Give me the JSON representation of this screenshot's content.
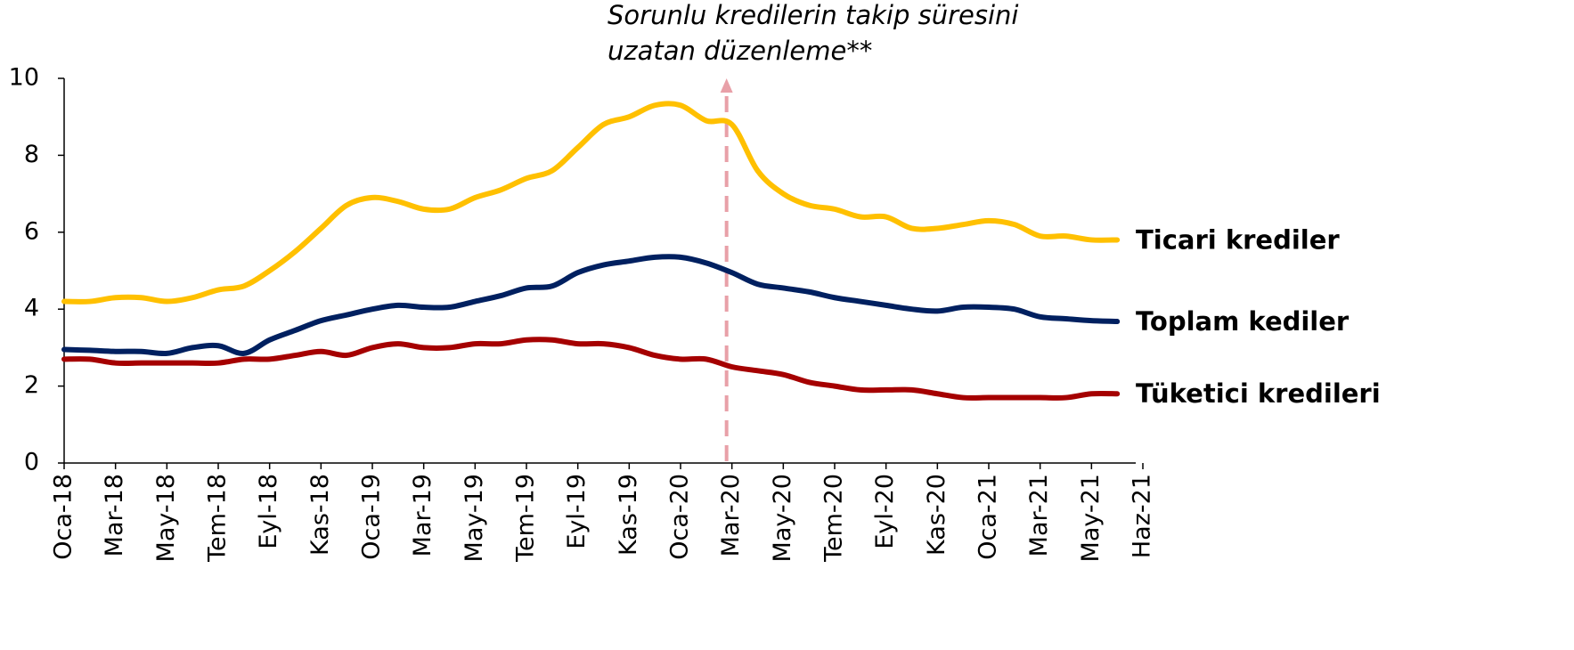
{
  "chart_data": {
    "type": "line",
    "categories": [
      "Oca-18",
      null,
      "Mar-18",
      null,
      "May-18",
      null,
      "Tem-18",
      null,
      "Eyl-18",
      null,
      "Kas-18",
      null,
      "Oca-19",
      null,
      "Mar-19",
      null,
      "May-19",
      null,
      "Tem-19",
      null,
      "Eyl-19",
      null,
      "Kas-19",
      null,
      "Oca-20",
      null,
      "Mar-20",
      null,
      "May-20",
      null,
      "Tem-20",
      null,
      "Eyl-20",
      null,
      "Kas-20",
      null,
      "Oca-21",
      null,
      "Mar-21",
      null,
      "May-21",
      null,
      "Haz-21"
    ],
    "series": [
      {
        "name": "Ticari krediler",
        "color": "#ffc000",
        "values": [
          4.2,
          4.2,
          4.3,
          4.3,
          4.2,
          4.3,
          4.5,
          4.6,
          5.0,
          5.5,
          6.1,
          6.7,
          6.9,
          6.8,
          6.6,
          6.6,
          6.9,
          7.1,
          7.4,
          7.6,
          8.2,
          8.8,
          9.0,
          9.3,
          9.3,
          8.9,
          8.8,
          7.6,
          7.0,
          6.7,
          6.6,
          6.4,
          6.4,
          6.1,
          6.1,
          6.2,
          6.3,
          6.2,
          5.9,
          5.9,
          5.8,
          5.8,
          null
        ]
      },
      {
        "name": "Toplam kediler",
        "color": "#002060",
        "values": [
          2.95,
          2.93,
          2.9,
          2.9,
          2.85,
          3.0,
          3.05,
          2.85,
          3.2,
          3.45,
          3.7,
          3.85,
          4.0,
          4.1,
          4.05,
          4.05,
          4.2,
          4.35,
          4.55,
          4.6,
          4.95,
          5.15,
          5.25,
          5.35,
          5.35,
          5.2,
          4.95,
          4.65,
          4.55,
          4.45,
          4.3,
          4.2,
          4.1,
          4.0,
          3.95,
          4.05,
          4.05,
          4.0,
          3.8,
          3.75,
          3.7,
          3.68,
          null
        ]
      },
      {
        "name": "Tüketici kredileri",
        "color": "#a50000",
        "values": [
          2.7,
          2.7,
          2.6,
          2.6,
          2.6,
          2.6,
          2.6,
          2.7,
          2.7,
          2.8,
          2.9,
          2.8,
          3.0,
          3.1,
          3.0,
          3.0,
          3.1,
          3.1,
          3.2,
          3.2,
          3.1,
          3.1,
          3.0,
          2.8,
          2.7,
          2.7,
          2.5,
          2.4,
          2.3,
          2.1,
          2.0,
          1.9,
          1.9,
          1.9,
          1.8,
          1.7,
          1.7,
          1.7,
          1.7,
          1.7,
          1.8,
          1.8,
          null
        ]
      }
    ],
    "ylim": [
      0,
      10
    ],
    "yticks": [
      0,
      2,
      4,
      6,
      8,
      10
    ],
    "grid": false,
    "annotation": {
      "text": [
        "Sorunlu kredilerin takip süresini",
        "uzatan düzenleme**"
      ],
      "at": "Mar-20",
      "color": "#c00000"
    }
  }
}
